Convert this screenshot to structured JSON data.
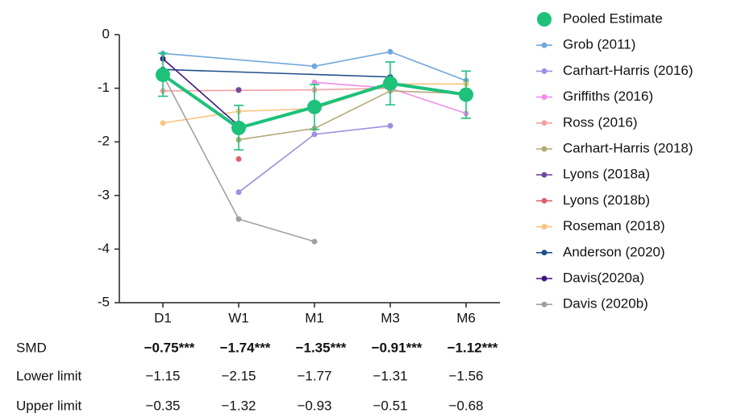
{
  "chart_data": {
    "type": "line",
    "categories": [
      "D1",
      "W1",
      "M1",
      "M3",
      "M6"
    ],
    "ylim": [
      -5,
      0
    ],
    "yticks": [
      0,
      -1,
      -2,
      -3,
      -4,
      -5
    ],
    "series": [
      {
        "name": "Pooled Estimate",
        "color": "#1dc17a",
        "x": [
          "D1",
          "W1",
          "M1",
          "M3",
          "M6"
        ],
        "values": [
          -0.75,
          -1.74,
          -1.35,
          -0.91,
          -1.12
        ],
        "lower": [
          -1.15,
          -2.15,
          -1.77,
          -1.31,
          -1.56
        ],
        "upper": [
          -0.35,
          -1.32,
          -0.93,
          -0.51,
          -0.68
        ]
      },
      {
        "name": "Grob (2011)",
        "color": "#6fa8dc",
        "x": [
          "D1",
          "M1",
          "M3",
          "M6"
        ],
        "values": [
          -0.35,
          -0.59,
          -0.32,
          -0.86
        ]
      },
      {
        "name": "Carhart-Harris (2016)",
        "color": "#a08ee0",
        "x": [
          "W1",
          "M1",
          "M3"
        ],
        "values": [
          -2.94,
          -1.86,
          -1.7
        ]
      },
      {
        "name": "Griffiths (2016)",
        "color": "#f08de8",
        "x": [
          "M1",
          "M3",
          "M6"
        ],
        "values": [
          -0.89,
          -1.0,
          -1.47
        ]
      },
      {
        "name": "Ross (2016)",
        "color": "#f4a0a0",
        "x": [
          "D1",
          "W1",
          "M1",
          "M3"
        ],
        "values": [
          -1.05,
          -1.04,
          -1.03,
          -1.0
        ]
      },
      {
        "name": "Carhart-Harris (2018)",
        "color": "#b7a87a",
        "x": [
          "W1",
          "M1",
          "M3",
          "M6"
        ],
        "values": [
          -1.96,
          -1.75,
          -1.05,
          -1.1
        ]
      },
      {
        "name": "Lyons (2018a)",
        "color": "#6a4c9c",
        "x": [
          "W1"
        ],
        "values": [
          -1.03
        ]
      },
      {
        "name": "Lyons (2018b)",
        "color": "#e0606a",
        "x": [
          "W1"
        ],
        "values": [
          -2.32
        ]
      },
      {
        "name": "Roseman (2018)",
        "color": "#f9c47e",
        "x": [
          "D1",
          "W1",
          "M1",
          "M3",
          "M6"
        ],
        "values": [
          -1.65,
          -1.43,
          -1.38,
          -0.92,
          -0.92
        ]
      },
      {
        "name": "Anderson (2020)",
        "color": "#1f4e8c",
        "x": [
          "D1",
          "M3"
        ],
        "values": [
          -0.65,
          -0.79
        ]
      },
      {
        "name": "Davis(2020a)",
        "color": "#3f1680",
        "x": [
          "D1",
          "W1"
        ],
        "values": [
          -0.45,
          -1.7
        ]
      },
      {
        "name": "Davis (2020b)",
        "color": "#a0a0a0",
        "x": [
          "D1",
          "W1",
          "M1"
        ],
        "values": [
          -0.75,
          -3.44,
          -3.86
        ]
      }
    ]
  },
  "table": {
    "rows": [
      [
        "SMD",
        "−0.75***",
        "−1.74***",
        "−1.35***",
        "−0.91***",
        "−1.12***"
      ],
      [
        "Lower limit",
        "−1.15",
        "−2.15",
        "−1.77",
        "−1.31",
        "−1.56"
      ],
      [
        "Upper limit",
        "−0.35",
        "−1.32",
        "−0.93",
        "−0.51",
        "−0.68"
      ]
    ]
  }
}
